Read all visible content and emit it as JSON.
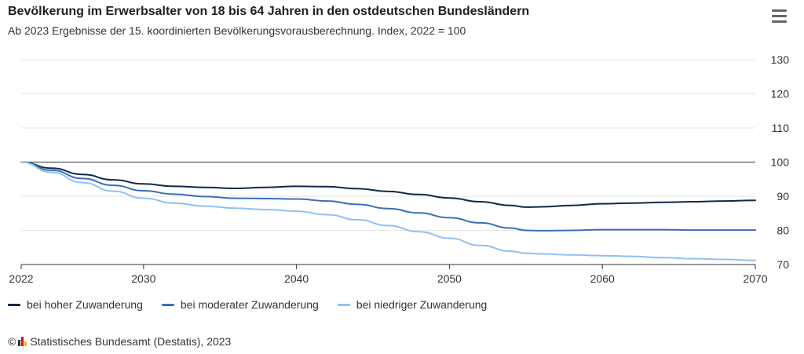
{
  "header": {
    "title": "Bevölkerung im Erwerbsalter von 18 bis 64 Jahren in den ostdeutschen Bundesländern",
    "subtitle": "Ab 2023 Ergebnisse der 15. koordinierten Bevölkerungsvorausberechnung. Index, 2022 = 100",
    "menu_icon": "hamburger-menu-icon"
  },
  "footer": {
    "copyright_symbol": "©",
    "source": "Statistisches Bundesamt (Destatis), 2023",
    "logo_colors": [
      "#333333",
      "#e2001a",
      "#f2b800"
    ]
  },
  "chart_data": {
    "type": "line",
    "title": "Bevölkerung im Erwerbsalter von 18 bis 64 Jahren in den ostdeutschen Bundesländern",
    "subtitle": "Ab 2023 Ergebnisse der 15. koordinierten Bevölkerungsvorausberechnung. Index, 2022 = 100",
    "xlim": [
      2022,
      2070
    ],
    "ylim": [
      70,
      130
    ],
    "x_ticks": [
      2022,
      2030,
      2040,
      2050,
      2060,
      2070
    ],
    "y_ticks": [
      70,
      80,
      90,
      100,
      110,
      120,
      130
    ],
    "y_axis_side": "right",
    "grid": true,
    "reference_line": 100,
    "legend_position": "bottom-left",
    "x": [
      2022,
      2024,
      2026,
      2028,
      2030,
      2032,
      2034,
      2036,
      2038,
      2040,
      2042,
      2044,
      2046,
      2048,
      2050,
      2052,
      2054,
      2055,
      2056,
      2058,
      2060,
      2062,
      2064,
      2066,
      2068,
      2070
    ],
    "series": [
      {
        "name": "bei hoher Zuwanderung",
        "color": "#0e2a47",
        "values": [
          100,
          98.2,
          96.4,
          94.8,
          93.6,
          92.9,
          92.6,
          92.3,
          92.6,
          92.9,
          92.8,
          92.2,
          91.4,
          90.5,
          89.5,
          88.4,
          87.3,
          86.8,
          86.9,
          87.3,
          87.8,
          88.0,
          88.2,
          88.4,
          88.6,
          88.8
        ]
      },
      {
        "name": "bei moderater Zuwanderung",
        "color": "#3a6fb5",
        "values": [
          100,
          97.6,
          95.2,
          93.2,
          91.6,
          90.6,
          89.9,
          89.4,
          89.3,
          89.2,
          88.6,
          87.6,
          86.4,
          85.1,
          83.7,
          82.2,
          80.7,
          80.0,
          79.9,
          80.0,
          80.2,
          80.2,
          80.2,
          80.1,
          80.1,
          80.1
        ]
      },
      {
        "name": "bei niedriger Zuwanderung",
        "color": "#8fc1f0",
        "values": [
          100,
          97.0,
          94.0,
          91.5,
          89.4,
          88.0,
          87.1,
          86.5,
          86.1,
          85.6,
          84.6,
          83.1,
          81.4,
          79.6,
          77.7,
          75.6,
          73.9,
          73.3,
          73.1,
          72.8,
          72.6,
          72.4,
          72.0,
          71.7,
          71.5,
          71.2
        ]
      }
    ]
  }
}
